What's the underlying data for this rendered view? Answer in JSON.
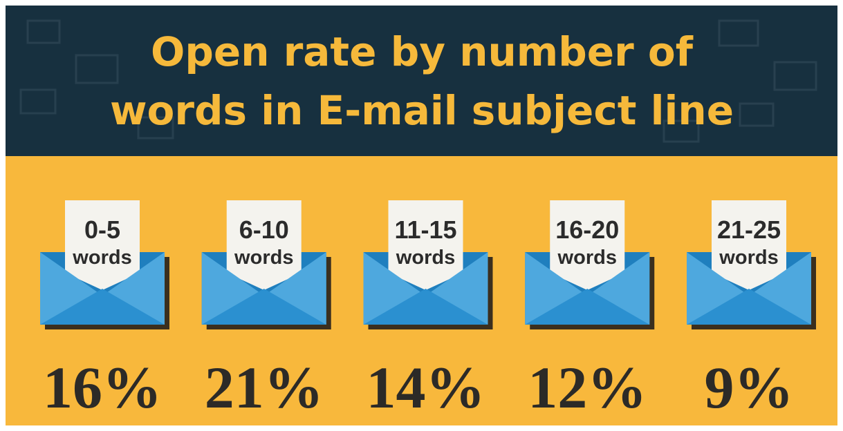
{
  "header": {
    "title_lines": [
      "Open rate by number of",
      "words in E-mail subject line"
    ]
  },
  "items": [
    {
      "range": "0-5",
      "unit": "words",
      "rate": "16%"
    },
    {
      "range": "6-10",
      "unit": "words",
      "rate": "21%"
    },
    {
      "range": "11-15",
      "unit": "words",
      "rate": "14%"
    },
    {
      "range": "16-20",
      "unit": "words",
      "rate": "12%"
    },
    {
      "range": "21-25",
      "unit": "words",
      "rate": "9%"
    }
  ]
}
